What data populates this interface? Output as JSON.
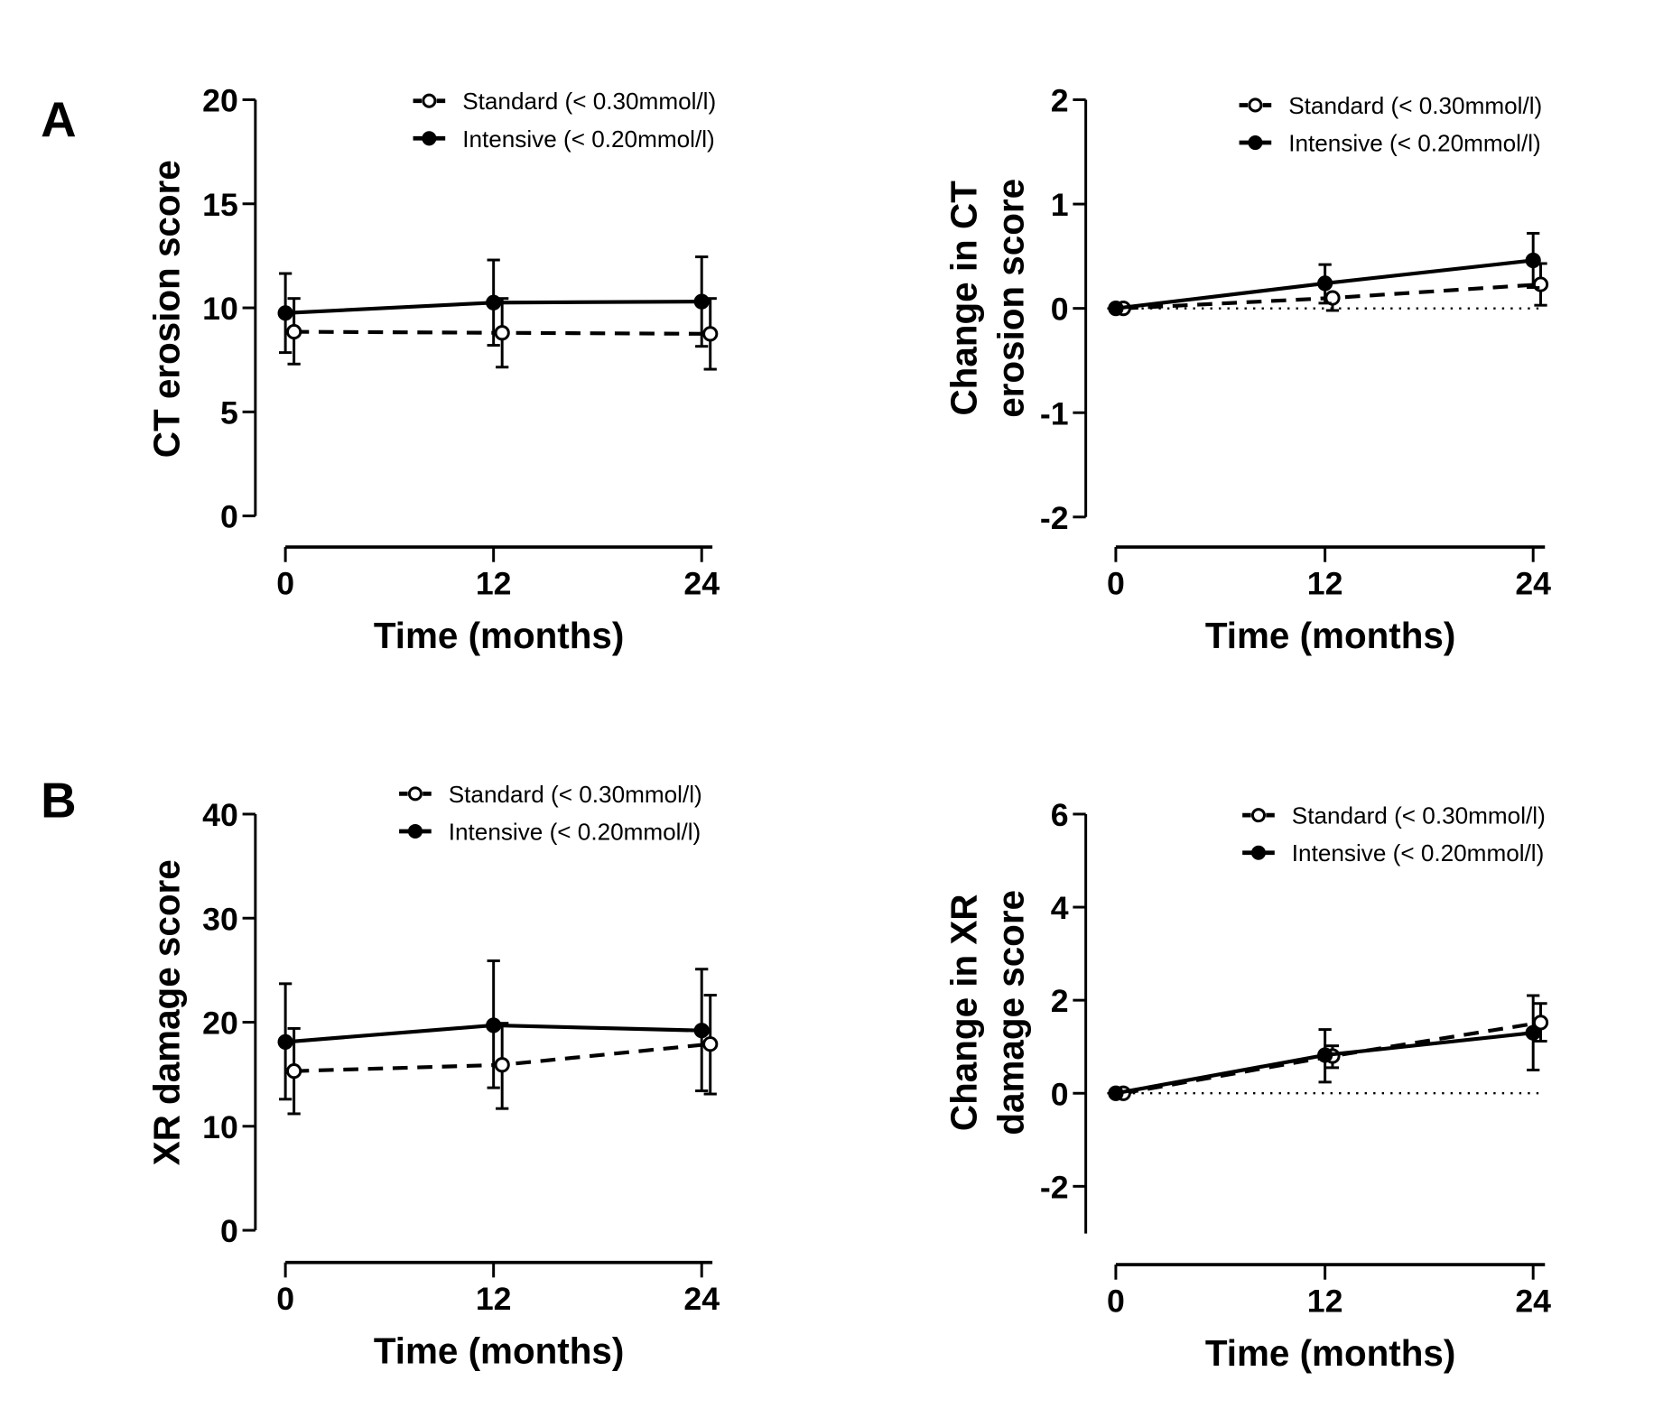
{
  "chart_data": [
    {
      "id": "A-left",
      "panel_label": "A",
      "type": "line",
      "xlabel": "Time (months)",
      "ylabel": [
        "CT erosion score"
      ],
      "x": [
        0,
        12,
        24
      ],
      "xticks": [
        "0",
        "12",
        "24"
      ],
      "ylim": [
        0,
        20
      ],
      "yticks": [
        "0",
        "5",
        "10",
        "15",
        "20"
      ],
      "ytick_values": [
        0,
        5,
        10,
        15,
        20
      ],
      "zero_line": false,
      "legend": "top-right",
      "series": [
        {
          "name": "Standard (< 0.30mmol/l)",
          "marker": "open-circle",
          "line": "dashed",
          "values": [
            8.85,
            8.8,
            8.75
          ],
          "err_low": [
            7.3,
            7.15,
            7.05
          ],
          "err_high": [
            10.45,
            10.45,
            10.45
          ]
        },
        {
          "name": "Intensive (< 0.20mmol/l)",
          "marker": "filled-circle",
          "line": "solid",
          "values": [
            9.75,
            10.25,
            10.3
          ],
          "err_low": [
            7.85,
            8.2,
            8.15
          ],
          "err_high": [
            11.65,
            12.3,
            12.45
          ]
        }
      ]
    },
    {
      "id": "A-right",
      "panel_label": "",
      "type": "line",
      "xlabel": "Time (months)",
      "ylabel": [
        "Change in CT",
        "erosion score"
      ],
      "x": [
        0,
        12,
        24
      ],
      "xticks": [
        "0",
        "12",
        "24"
      ],
      "ylim": [
        -2,
        2
      ],
      "yticks": [
        "-2",
        "-1",
        "0",
        "1",
        "2"
      ],
      "ytick_values": [
        -2,
        -1,
        0,
        1,
        2
      ],
      "zero_line": true,
      "legend": "top-right",
      "series": [
        {
          "name": "Standard (< 0.30mmol/l)",
          "marker": "open-circle",
          "line": "dashed",
          "values": [
            0,
            0.1,
            0.23
          ],
          "err_low": [
            0,
            -0.02,
            0.03
          ],
          "err_high": [
            0,
            0.1,
            0.43
          ]
        },
        {
          "name": "Intensive (< 0.20mmol/l)",
          "marker": "filled-circle",
          "line": "solid",
          "values": [
            0,
            0.24,
            0.46
          ],
          "err_low": [
            0,
            0.05,
            0.2
          ],
          "err_high": [
            0,
            0.42,
            0.72
          ]
        }
      ]
    },
    {
      "id": "B-left",
      "panel_label": "B",
      "type": "line",
      "xlabel": "Time (months)",
      "ylabel": [
        "XR damage score"
      ],
      "x": [
        0,
        12,
        24
      ],
      "xticks": [
        "0",
        "12",
        "24"
      ],
      "ylim": [
        0,
        40
      ],
      "yticks": [
        "0",
        "10",
        "20",
        "30",
        "40"
      ],
      "ytick_values": [
        0,
        10,
        20,
        30,
        40
      ],
      "zero_line": false,
      "legend": "top-right",
      "series": [
        {
          "name": "Standard (< 0.30mmol/l)",
          "marker": "open-circle",
          "line": "dashed",
          "values": [
            15.3,
            15.9,
            17.9
          ],
          "err_low": [
            11.2,
            11.7,
            13.1
          ],
          "err_high": [
            19.4,
            19.9,
            22.6
          ]
        },
        {
          "name": "Intensive (< 0.20mmol/l)",
          "marker": "filled-circle",
          "line": "solid",
          "values": [
            18.1,
            19.7,
            19.2
          ],
          "err_low": [
            12.6,
            13.7,
            13.4
          ],
          "err_high": [
            23.7,
            25.9,
            25.1
          ]
        }
      ]
    },
    {
      "id": "B-right",
      "panel_label": "",
      "type": "line",
      "xlabel": "Time (months)",
      "ylabel": [
        "Change in XR",
        "damage score"
      ],
      "x": [
        0,
        12,
        24
      ],
      "xticks": [
        "0",
        "12",
        "24"
      ],
      "ylim": [
        -3,
        6
      ],
      "yticks": [
        "-2",
        "0",
        "2",
        "4",
        "6"
      ],
      "ytick_values": [
        -2,
        0,
        2,
        4,
        6
      ],
      "zero_line": true,
      "legend": "top-right",
      "series": [
        {
          "name": "Standard (< 0.30mmol/l)",
          "marker": "open-circle",
          "line": "dashed",
          "values": [
            0,
            0.8,
            1.52
          ],
          "err_low": [
            0,
            0.55,
            1.12
          ],
          "err_high": [
            0,
            1.02,
            1.93
          ]
        },
        {
          "name": "Intensive (< 0.20mmol/l)",
          "marker": "filled-circle",
          "line": "solid",
          "values": [
            0,
            0.82,
            1.3
          ],
          "err_low": [
            0,
            0.24,
            0.5
          ],
          "err_high": [
            0,
            1.37,
            2.1
          ]
        }
      ]
    }
  ]
}
